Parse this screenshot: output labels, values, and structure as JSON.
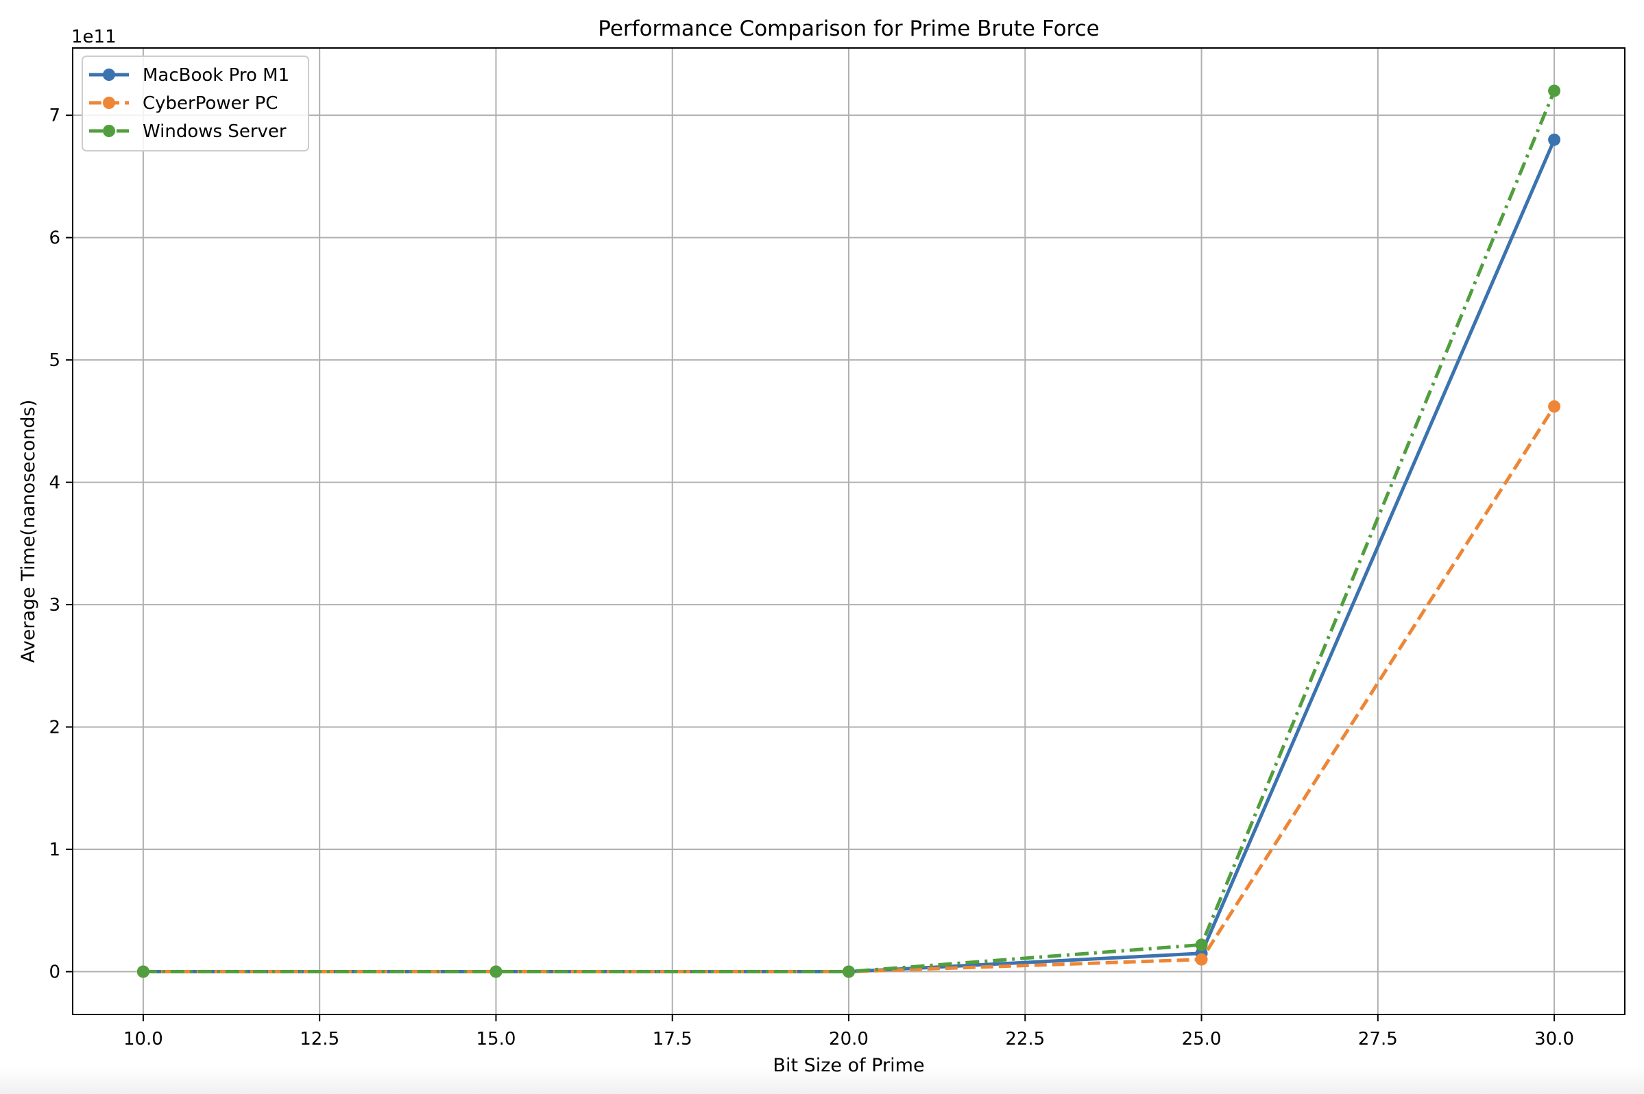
{
  "chart_data": {
    "type": "line",
    "title": "Performance Comparison for Prime Brute Force",
    "xlabel": "Bit Size of Prime",
    "ylabel": "Average Time(nanoseconds)",
    "y_scale_label": "1e11",
    "x": [
      10,
      15,
      20,
      25,
      30
    ],
    "xlim": [
      9.0,
      31.0
    ],
    "ylim": [
      -0.35,
      7.55
    ],
    "x_ticks": [
      10.0,
      12.5,
      15.0,
      17.5,
      20.0,
      22.5,
      25.0,
      27.5,
      30.0
    ],
    "x_tick_labels": [
      "10.0",
      "12.5",
      "15.0",
      "17.5",
      "20.0",
      "22.5",
      "25.0",
      "27.5",
      "30.0"
    ],
    "y_ticks": [
      0,
      1,
      2,
      3,
      4,
      5,
      6,
      7
    ],
    "y_tick_labels": [
      "0",
      "1",
      "2",
      "3",
      "4",
      "5",
      "6",
      "7"
    ],
    "grid": true,
    "legend_position": "top-left",
    "series": [
      {
        "name": "MacBook Pro M1",
        "values": [
          0.0,
          0.0,
          0.0,
          0.15,
          6.8
        ],
        "color": "#3b73af",
        "linestyle": "solid"
      },
      {
        "name": "CyberPower PC",
        "values": [
          0.0,
          0.0,
          0.0,
          0.1,
          4.62
        ],
        "color": "#ee8636",
        "linestyle": "dashed"
      },
      {
        "name": "Windows Server",
        "values": [
          0.0,
          0.0,
          0.0,
          0.22,
          7.2
        ],
        "color": "#519e3e",
        "linestyle": "dashdot"
      }
    ]
  }
}
